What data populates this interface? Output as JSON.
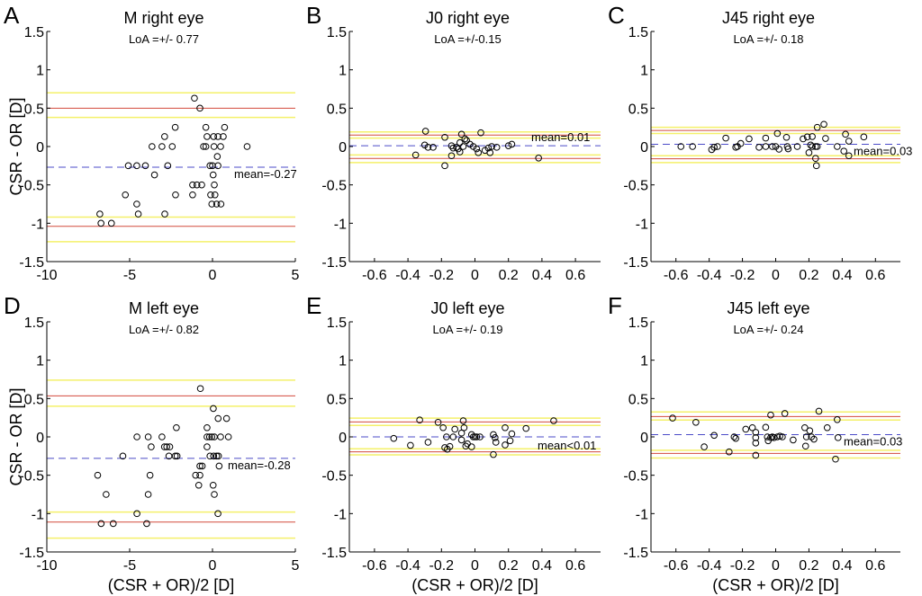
{
  "colors": {
    "loa": "#d24a3c",
    "ci": "#f4f06a",
    "mean": "#4b4bc8",
    "points": "#000000"
  },
  "chart_data": [
    {
      "type": "scatter",
      "panel_label": "A",
      "title": "M right eye",
      "subtitle": "LoA =+/- 0.77",
      "xlabel": "",
      "ylabel": "CSR - OR [D]",
      "xlim": [
        -10,
        5
      ],
      "ylim": [
        -1.5,
        1.5
      ],
      "xticks": [
        "-10",
        "-5",
        "0",
        "5"
      ],
      "yticks": [
        "-1.5",
        "-1",
        "-0.5",
        "0",
        "0.5",
        "1",
        "1.5"
      ],
      "mean": -0.27,
      "mean_label": "mean=-0.27",
      "loa": [
        0.5,
        -1.04
      ],
      "ci": [
        0.7,
        0.38,
        -0.92,
        -1.24
      ],
      "points": [
        [
          -1.09,
          0.63
        ],
        [
          -0.76,
          0.5
        ],
        [
          -2.25,
          0.25
        ],
        [
          -0.4,
          0.25
        ],
        [
          0.73,
          0.25
        ],
        [
          -2.89,
          0.13
        ],
        [
          -0.33,
          0.13
        ],
        [
          0.07,
          0.13
        ],
        [
          0.33,
          0.13
        ],
        [
          0.65,
          0.13
        ],
        [
          -3.65,
          0
        ],
        [
          -3.05,
          0
        ],
        [
          -2.43,
          0
        ],
        [
          -0.54,
          0
        ],
        [
          -0.4,
          0
        ],
        [
          0.09,
          0
        ],
        [
          0.49,
          0
        ],
        [
          2.09,
          0
        ],
        [
          0.29,
          -0.13
        ],
        [
          -5.08,
          -0.25
        ],
        [
          -4.57,
          -0.25
        ],
        [
          -4.05,
          -0.25
        ],
        [
          -2.7,
          -0.25
        ],
        [
          -0.15,
          -0.25
        ],
        [
          0,
          -0.25
        ],
        [
          0.33,
          -0.25
        ],
        [
          -3.5,
          -0.37
        ],
        [
          0.04,
          -0.37
        ],
        [
          -1.2,
          -0.5
        ],
        [
          -0.94,
          -0.5
        ],
        [
          -0.65,
          -0.5
        ],
        [
          0.11,
          -0.5
        ],
        [
          -5.26,
          -0.63
        ],
        [
          -2.23,
          -0.63
        ],
        [
          -1.2,
          -0.63
        ],
        [
          -0.11,
          -0.63
        ],
        [
          0.15,
          -0.63
        ],
        [
          -0.04,
          -0.75
        ],
        [
          0.25,
          -0.75
        ],
        [
          0.51,
          -0.75
        ],
        [
          -4.57,
          -0.75
        ],
        [
          -6.8,
          -0.88
        ],
        [
          -4.48,
          -0.88
        ],
        [
          -2.88,
          -0.88
        ],
        [
          -6.73,
          -1
        ],
        [
          -6.1,
          -1
        ]
      ]
    },
    {
      "type": "scatter",
      "panel_label": "B",
      "title": "J0 right eye",
      "subtitle": "LoA =+/-0.15",
      "xlabel": "",
      "ylabel": "",
      "xlim": [
        -0.75,
        0.75
      ],
      "ylim": [
        -1.5,
        1.5
      ],
      "xticks": [
        "-0.6",
        "-0.4",
        "-0.2",
        "0",
        "0.2",
        "0.4",
        "0.6"
      ],
      "yticks": [
        "-1.5",
        "-1",
        "-0.5",
        "0",
        "0.5",
        "1",
        "1.5"
      ],
      "mean": 0.01,
      "mean_label": "mean=0.01",
      "loa": [
        0.15,
        -0.155
      ],
      "ci": [
        0.19,
        0.11,
        -0.11,
        -0.21
      ],
      "points": [
        [
          -0.295,
          0.2
        ],
        [
          -0.354,
          -0.11
        ],
        [
          -0.3,
          0.02
        ],
        [
          -0.28,
          -0.01
        ],
        [
          -0.25,
          -0.01
        ],
        [
          -0.18,
          0.12
        ],
        [
          -0.18,
          -0.25
        ],
        [
          -0.14,
          -0.12
        ],
        [
          -0.14,
          0.01
        ],
        [
          -0.13,
          -0.02
        ],
        [
          -0.11,
          -0.01
        ],
        [
          -0.1,
          -0.03
        ],
        [
          -0.09,
          -0.07
        ],
        [
          -0.09,
          0.05
        ],
        [
          -0.08,
          0.16
        ],
        [
          -0.07,
          0
        ],
        [
          -0.06,
          0.1
        ],
        [
          -0.05,
          0.08
        ],
        [
          -0.03,
          0.03
        ],
        [
          -0.01,
          0
        ],
        [
          0.01,
          -0.03
        ],
        [
          0.02,
          -0.08
        ],
        [
          0.035,
          0.18
        ],
        [
          0.06,
          -0.05
        ],
        [
          0.08,
          -0.02
        ],
        [
          0.1,
          0
        ],
        [
          0.09,
          -0.08
        ],
        [
          0.13,
          -0.01
        ],
        [
          0.2,
          0.01
        ],
        [
          0.22,
          0.03
        ],
        [
          0.38,
          -0.15
        ]
      ]
    },
    {
      "type": "scatter",
      "panel_label": "C",
      "title": "J45 right eye",
      "subtitle": "LoA =+/- 0.18",
      "xlabel": "",
      "ylabel": "",
      "xlim": [
        -0.75,
        0.75
      ],
      "ylim": [
        -1.5,
        1.5
      ],
      "xticks": [
        "-0.6",
        "-0.4",
        "-0.2",
        "0",
        "0.2",
        "0.4",
        "0.6"
      ],
      "yticks": [
        "-1.5",
        "-1",
        "-0.5",
        "0",
        "0.5",
        "1",
        "1.5"
      ],
      "mean": 0.03,
      "mean_label": "mean=0.03",
      "loa": [
        0.21,
        -0.16
      ],
      "ci": [
        0.25,
        0.17,
        -0.12,
        -0.21
      ],
      "points": [
        [
          -0.57,
          0
        ],
        [
          -0.5,
          0
        ],
        [
          -0.385,
          -0.04
        ],
        [
          -0.37,
          -0.01
        ],
        [
          -0.35,
          0
        ],
        [
          -0.3,
          0.11
        ],
        [
          -0.24,
          -0.01
        ],
        [
          -0.23,
          0
        ],
        [
          -0.21,
          0.04
        ],
        [
          -0.16,
          0.1
        ],
        [
          -0.1,
          -0.01
        ],
        [
          -0.06,
          0
        ],
        [
          -0.06,
          0.11
        ],
        [
          -0.02,
          0
        ],
        [
          0,
          0
        ],
        [
          0.01,
          0.17
        ],
        [
          0.02,
          -0.035
        ],
        [
          0.065,
          0.12
        ],
        [
          0.07,
          0
        ],
        [
          0.075,
          -0.03
        ],
        [
          0.13,
          0
        ],
        [
          0.165,
          0.1
        ],
        [
          0.19,
          0.125
        ],
        [
          0.2,
          -0.08
        ],
        [
          0.22,
          0.13
        ],
        [
          0.21,
          0.02
        ],
        [
          0.22,
          0
        ],
        [
          0.24,
          -0.155
        ],
        [
          0.24,
          0
        ],
        [
          0.25,
          0
        ],
        [
          0.245,
          -0.25
        ],
        [
          0.25,
          0.25
        ],
        [
          0.29,
          0.29
        ],
        [
          0.3,
          0.105
        ],
        [
          0.37,
          0
        ],
        [
          0.41,
          -0.06
        ],
        [
          0.42,
          0.16
        ],
        [
          0.44,
          0.07
        ],
        [
          0.44,
          -0.12
        ],
        [
          0.53,
          0.125
        ]
      ]
    },
    {
      "type": "scatter",
      "panel_label": "D",
      "title": "M left eye",
      "subtitle": "LoA =+/- 0.82",
      "xlabel": "(CSR + OR)/2 [D]",
      "ylabel": "CSR - OR [D]",
      "xlim": [
        -10,
        5
      ],
      "ylim": [
        -1.5,
        1.5
      ],
      "xticks": [
        "-10",
        "-5",
        "0",
        "5"
      ],
      "yticks": [
        "-1.5",
        "-1",
        "-0.5",
        "0",
        "0.5",
        "1",
        "1.5"
      ],
      "mean": -0.28,
      "mean_label": "mean=-0.28",
      "loa": [
        0.535,
        -1.11
      ],
      "ci": [
        0.74,
        0.4,
        -0.98,
        -1.32
      ],
      "points": [
        [
          -0.73,
          0.63
        ],
        [
          0.05,
          0.37
        ],
        [
          0.34,
          0.24
        ],
        [
          0.85,
          0.24
        ],
        [
          -2.18,
          0.12
        ],
        [
          -0.33,
          0.12
        ],
        [
          -4.56,
          0
        ],
        [
          -3.88,
          0
        ],
        [
          -3.05,
          0
        ],
        [
          -0.33,
          0
        ],
        [
          -0.18,
          0
        ],
        [
          -0.04,
          0
        ],
        [
          0.11,
          0
        ],
        [
          0.49,
          0
        ],
        [
          0.96,
          0
        ],
        [
          -3.7,
          -0.13
        ],
        [
          -2.9,
          -0.13
        ],
        [
          -2.76,
          -0.13
        ],
        [
          -2.58,
          -0.13
        ],
        [
          -0.33,
          -0.13
        ],
        [
          -5.41,
          -0.25
        ],
        [
          -2.63,
          -0.25
        ],
        [
          -2.25,
          -0.25
        ],
        [
          -2.14,
          -0.25
        ],
        [
          -0.15,
          -0.25
        ],
        [
          0.07,
          -0.25
        ],
        [
          0.25,
          -0.25
        ],
        [
          0.36,
          -0.25
        ],
        [
          -0.76,
          -0.38
        ],
        [
          -0.62,
          -0.38
        ],
        [
          0.4,
          -0.38
        ],
        [
          -6.93,
          -0.5
        ],
        [
          -3.77,
          -0.5
        ],
        [
          -1.02,
          -0.5
        ],
        [
          -0.76,
          -0.5
        ],
        [
          -0.83,
          -0.63
        ],
        [
          0.04,
          -0.63
        ],
        [
          -6.42,
          -0.75
        ],
        [
          -3.88,
          -0.75
        ],
        [
          0.11,
          -0.75
        ],
        [
          -4.56,
          -1.0
        ],
        [
          0.33,
          -1.0
        ],
        [
          -6.72,
          -1.13
        ],
        [
          -5.99,
          -1.13
        ],
        [
          -3.97,
          -1.13
        ]
      ]
    },
    {
      "type": "scatter",
      "panel_label": "E",
      "title": "J0 left eye",
      "subtitle": "LoA =+/- 0.19",
      "xlabel": "(CSR + OR)/2 [D]",
      "ylabel": "",
      "xlim": [
        -0.75,
        0.75
      ],
      "ylim": [
        -1.5,
        1.5
      ],
      "xticks": [
        "-0.6",
        "-0.4",
        "-0.2",
        "0",
        "0.2",
        "0.4",
        "0.6"
      ],
      "yticks": [
        "-1.5",
        "-1",
        "-0.5",
        "0",
        "0.5",
        "1",
        "1.5"
      ],
      "mean": 0.0,
      "mean_label": "mean<0.01",
      "loa": [
        0.195,
        -0.195
      ],
      "ci": [
        0.245,
        0.15,
        -0.155,
        -0.235
      ],
      "points": [
        [
          -0.485,
          -0.02
        ],
        [
          -0.385,
          -0.11
        ],
        [
          -0.33,
          0.22
        ],
        [
          -0.28,
          -0.07
        ],
        [
          -0.22,
          0.19
        ],
        [
          -0.19,
          0.12
        ],
        [
          -0.18,
          -0.14
        ],
        [
          -0.165,
          -0.16
        ],
        [
          -0.15,
          -0.125
        ],
        [
          -0.17,
          0
        ],
        [
          -0.13,
          0
        ],
        [
          -0.12,
          0.1
        ],
        [
          -0.08,
          0.05
        ],
        [
          -0.07,
          0.21
        ],
        [
          -0.065,
          0.12
        ],
        [
          -0.08,
          -0.04
        ],
        [
          -0.055,
          -0.12
        ],
        [
          -0.045,
          -0.09
        ],
        [
          -0.02,
          -0.13
        ],
        [
          -0.02,
          0.03
        ],
        [
          -0.01,
          0
        ],
        [
          0,
          0
        ],
        [
          0.01,
          0
        ],
        [
          0.03,
          0
        ],
        [
          0.11,
          0.03
        ],
        [
          0.11,
          -0.23
        ],
        [
          0.12,
          -0.01
        ],
        [
          0.125,
          -0.07
        ],
        [
          0.18,
          0.12
        ],
        [
          0.18,
          -0.105
        ],
        [
          0.21,
          -0.05
        ],
        [
          0.22,
          0.04
        ],
        [
          0.305,
          0.11
        ],
        [
          0.47,
          0.21
        ]
      ]
    },
    {
      "type": "scatter",
      "panel_label": "F",
      "title": "J45 left eye",
      "subtitle": "LoA =+/- 0.24",
      "xlabel": "(CSR + OR)/2 [D]",
      "ylabel": "",
      "xlim": [
        -0.75,
        0.75
      ],
      "ylim": [
        -1.5,
        1.5
      ],
      "xticks": [
        "-0.6",
        "-0.4",
        "-0.2",
        "0",
        "0.2",
        "0.4",
        "0.6"
      ],
      "yticks": [
        "-1.5",
        "-1",
        "-0.5",
        "0",
        "0.5",
        "1",
        "1.5"
      ],
      "mean": 0.03,
      "mean_label": "mean=0.03",
      "loa": [
        0.265,
        -0.215
      ],
      "ci": [
        0.325,
        0.22,
        -0.175,
        -0.275
      ],
      "points": [
        [
          -0.62,
          0.245
        ],
        [
          -0.48,
          0.19
        ],
        [
          -0.43,
          -0.13
        ],
        [
          -0.37,
          0.02
        ],
        [
          -0.28,
          -0.195
        ],
        [
          -0.25,
          0
        ],
        [
          -0.24,
          -0.02
        ],
        [
          -0.18,
          0.1
        ],
        [
          -0.14,
          0.12
        ],
        [
          -0.12,
          0.06
        ],
        [
          -0.12,
          -0.01
        ],
        [
          -0.12,
          -0.08
        ],
        [
          -0.12,
          -0.24
        ],
        [
          -0.06,
          0.125
        ],
        [
          -0.05,
          0
        ],
        [
          -0.045,
          -0.05
        ],
        [
          -0.03,
          -0.01
        ],
        [
          -0.02,
          0
        ],
        [
          -0.01,
          -0.01
        ],
        [
          0.01,
          0
        ],
        [
          0.025,
          0.01
        ],
        [
          0.04,
          0
        ],
        [
          -0.03,
          0.285
        ],
        [
          0.055,
          0.305
        ],
        [
          0.105,
          -0.04
        ],
        [
          0.175,
          0.12
        ],
        [
          0.185,
          0
        ],
        [
          0.18,
          -0.12
        ],
        [
          0.205,
          0.08
        ],
        [
          0.215,
          0
        ],
        [
          0.23,
          -0.03
        ],
        [
          0.26,
          0.335
        ],
        [
          0.31,
          0.12
        ],
        [
          0.37,
          0.225
        ],
        [
          0.375,
          -0.01
        ],
        [
          0.36,
          -0.29
        ]
      ]
    }
  ]
}
